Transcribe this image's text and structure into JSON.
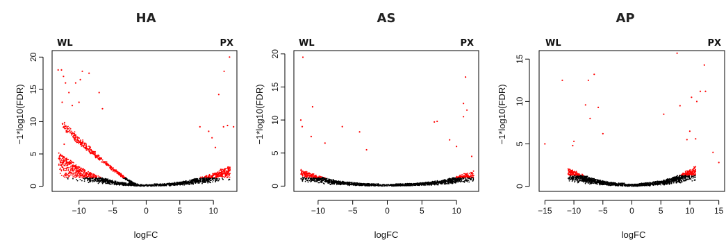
{
  "chart_data": [
    {
      "type": "scatter",
      "title": "HA",
      "xlabel": "logFC",
      "ylabel": "−1*log10(FDR)",
      "left_label": "WL",
      "right_label": "PX",
      "xlim": [
        -14,
        13.5
      ],
      "ylim": [
        -0.8,
        21
      ],
      "xticks": [
        -10,
        -5,
        0,
        5,
        10
      ],
      "yticks": [
        0,
        5,
        10,
        15,
        20
      ],
      "colors": {
        "significant": "#ff0000",
        "not_significant": "#000000"
      },
      "significance_threshold": 1.3,
      "shape": {
        "left_extent": 13,
        "right_extent": 12.5,
        "left_height": 5.2,
        "right_height": 3.0,
        "power": 2.3
      },
      "outliers": [
        [
          -13.1,
          18
        ],
        [
          -12.6,
          18
        ],
        [
          -12.3,
          17
        ],
        [
          -9.5,
          17.8
        ],
        [
          -9.8,
          16.5
        ],
        [
          -10.5,
          16
        ],
        [
          -8.5,
          17.5
        ],
        [
          -12,
          16
        ],
        [
          -11.5,
          14.5
        ],
        [
          -12.5,
          13
        ],
        [
          -11,
          12.5
        ],
        [
          -10,
          13
        ],
        [
          -13,
          4.3
        ],
        [
          -12.2,
          6.5
        ],
        [
          -6.5,
          12
        ],
        [
          -7,
          14.5
        ],
        [
          10.8,
          14.2
        ],
        [
          11.6,
          17.8
        ],
        [
          12.4,
          20
        ],
        [
          12.1,
          9.4
        ],
        [
          11.5,
          9.2
        ],
        [
          13,
          9.2
        ],
        [
          9.8,
          7.5
        ],
        [
          9.3,
          8.5
        ],
        [
          8,
          9.2
        ],
        [
          10.3,
          6
        ]
      ]
    },
    {
      "type": "scatter",
      "title": "AS",
      "xlabel": "logFC",
      "ylabel": "−1*log10(FDR)",
      "left_label": "WL",
      "right_label": "PX",
      "xlim": [
        -13.5,
        13.2
      ],
      "ylim": [
        -0.8,
        20.5
      ],
      "xticks": [
        -10,
        -5,
        0,
        5,
        10
      ],
      "yticks": [
        0,
        5,
        10,
        15,
        20
      ],
      "colors": {
        "significant": "#ff0000",
        "not_significant": "#000000"
      },
      "significance_threshold": 1.3,
      "shape": {
        "left_extent": 12.5,
        "right_extent": 12.5,
        "left_height": 2.3,
        "right_height": 2.1,
        "power": 2.6
      },
      "outliers": [
        [
          -12.2,
          19.5
        ],
        [
          -10.8,
          12
        ],
        [
          -12.5,
          10
        ],
        [
          -12.3,
          9
        ],
        [
          -11,
          7.5
        ],
        [
          -6.5,
          9
        ],
        [
          -4,
          8.2
        ],
        [
          -3,
          5.5
        ],
        [
          -9,
          6.5
        ],
        [
          11.3,
          16.5
        ],
        [
          11,
          12.5
        ],
        [
          11.5,
          11.5
        ],
        [
          11,
          10.5
        ],
        [
          7.2,
          9.8
        ],
        [
          6.8,
          9.7
        ],
        [
          9,
          7
        ],
        [
          10,
          6
        ],
        [
          12.2,
          4.5
        ]
      ]
    },
    {
      "type": "scatter",
      "title": "AP",
      "xlabel": "logFC",
      "ylabel": "−1*log10(FDR)",
      "left_label": "WL",
      "right_label": "PX",
      "xlim": [
        -16,
        16
      ],
      "ylim": [
        -0.6,
        16
      ],
      "xticks": [
        -15,
        -10,
        -5,
        0,
        5,
        10,
        15
      ],
      "yticks": [
        0,
        5,
        10,
        15
      ],
      "colors": {
        "significant": "#ff0000",
        "not_significant": "#000000"
      },
      "significance_threshold": 1.3,
      "shape": {
        "left_extent": 11,
        "right_extent": 11,
        "left_height": 1.9,
        "right_height": 2.1,
        "power": 2.2
      },
      "outliers": [
        [
          -15,
          5
        ],
        [
          -6.5,
          13.2
        ],
        [
          -7.5,
          12.5
        ],
        [
          -12,
          12.5
        ],
        [
          -8,
          9.6
        ],
        [
          -5.8,
          9.3
        ],
        [
          -7.2,
          8
        ],
        [
          -5,
          6.2
        ],
        [
          -10,
          5.3
        ],
        [
          -10.2,
          4.8
        ],
        [
          7.8,
          15.7
        ],
        [
          12.5,
          14.3
        ],
        [
          11.8,
          11.2
        ],
        [
          12.7,
          11.2
        ],
        [
          10.3,
          10.5
        ],
        [
          11.2,
          10
        ],
        [
          8.3,
          9.5
        ],
        [
          5.5,
          8.5
        ],
        [
          10,
          6.5
        ],
        [
          9.5,
          5.5
        ],
        [
          11,
          5.6
        ],
        [
          14,
          4
        ],
        [
          15,
          2.8
        ]
      ]
    }
  ]
}
